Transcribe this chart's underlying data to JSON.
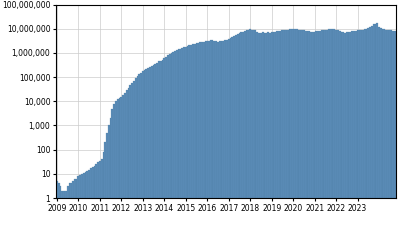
{
  "bar_color": "#5b8db8",
  "edge_color": "#4a7aa0",
  "bg_color": "#ffffff",
  "grid_color": "#cccccc",
  "ylim": [
    1,
    100000000
  ],
  "yticks": [
    1,
    10,
    100,
    1000,
    10000,
    100000,
    1000000,
    10000000,
    100000000
  ],
  "ytick_labels": [
    "1",
    "10",
    "100",
    "1,000",
    "10,000",
    "100,000",
    "1,000,000",
    "10,000,000",
    "100,000,000"
  ],
  "xtick_years": [
    "2009",
    "2010",
    "2011",
    "2012",
    "2013",
    "2014",
    "2015",
    "2016",
    "2017",
    "2018",
    "2019",
    "2020",
    "2021",
    "2022",
    "2023"
  ],
  "monthly_data": [
    5,
    4,
    3,
    2,
    2,
    2,
    3,
    4,
    4,
    5,
    6,
    6,
    8,
    9,
    10,
    11,
    12,
    13,
    15,
    18,
    20,
    22,
    25,
    30,
    35,
    40,
    80,
    200,
    500,
    1000,
    2000,
    5000,
    8000,
    10000,
    12000,
    13000,
    15000,
    18000,
    22000,
    28000,
    35000,
    45000,
    55000,
    70000,
    90000,
    110000,
    130000,
    150000,
    170000,
    190000,
    210000,
    230000,
    260000,
    290000,
    320000,
    360000,
    400000,
    440000,
    480000,
    520000,
    600000,
    700000,
    800000,
    900000,
    1000000,
    1100000,
    1200000,
    1300000,
    1400000,
    1500000,
    1600000,
    1700000,
    1800000,
    2000000,
    2100000,
    2200000,
    2300000,
    2400000,
    2500000,
    2600000,
    2700000,
    2800000,
    2900000,
    3000000,
    3100000,
    3200000,
    3300000,
    3400000,
    3200000,
    3000000,
    2900000,
    3000000,
    3100000,
    3200000,
    3400000,
    3500000,
    3600000,
    4000000,
    4500000,
    5000000,
    5500000,
    6000000,
    6500000,
    7000000,
    7500000,
    8000000,
    8500000,
    9000000,
    9500000,
    9200000,
    8800000,
    8500000,
    7000000,
    6500000,
    6800000,
    7000000,
    6500000,
    6800000,
    7000000,
    6700000,
    7000000,
    7200000,
    7500000,
    7800000,
    8000000,
    8200000,
    8500000,
    8800000,
    9000000,
    9200000,
    9500000,
    9800000,
    10000000,
    9800000,
    9500000,
    9200000,
    9000000,
    8800000,
    8500000,
    8200000,
    8000000,
    7800000,
    7500000,
    7200000,
    7500000,
    7800000,
    8000000,
    8200000,
    8500000,
    8800000,
    9000000,
    9200000,
    9500000,
    9800000,
    10000000,
    9500000,
    9000000,
    8500000,
    8000000,
    7500000,
    7000000,
    6800000,
    7000000,
    7200000,
    7500000,
    7800000,
    8000000,
    8200000,
    8500000,
    8800000,
    9000000,
    9200000,
    9500000,
    10000000,
    11000000,
    12000000,
    13000000,
    15000000,
    16000000,
    17000000,
    12000000,
    11000000,
    10000000,
    9500000,
    9200000,
    9000000,
    8800000,
    8500000,
    8200000,
    8000000
  ],
  "figsize": [
    4.0,
    2.25
  ],
  "dpi": 100
}
